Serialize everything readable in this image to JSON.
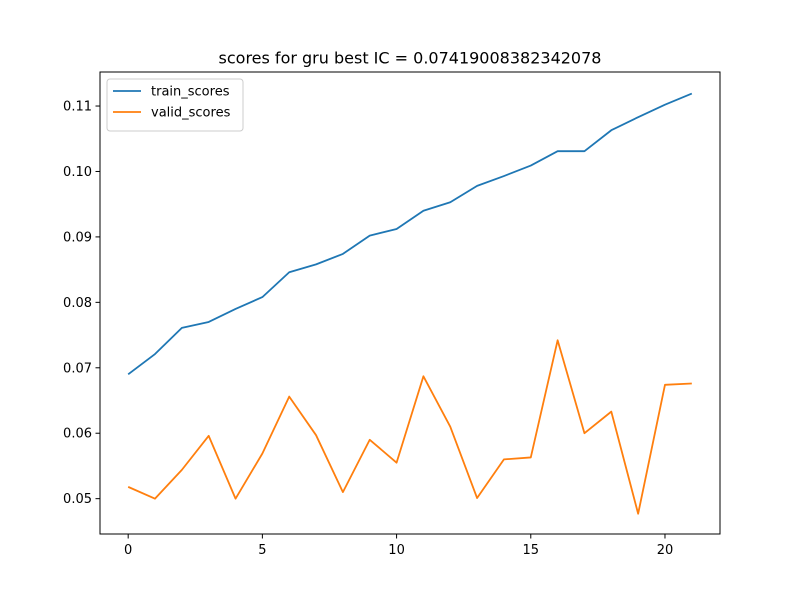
{
  "chart_data": {
    "type": "line",
    "title": "scores for gru best IC = 0.07419008382342078",
    "xlabel": "",
    "ylabel": "",
    "x": [
      0,
      1,
      2,
      3,
      4,
      5,
      6,
      7,
      8,
      9,
      10,
      11,
      12,
      13,
      14,
      15,
      16,
      17,
      18,
      19,
      20,
      21
    ],
    "xlim": [
      -1.05,
      22.05
    ],
    "ylim": [
      0.0446,
      0.1152
    ],
    "x_ticks": [
      0,
      5,
      10,
      15,
      20
    ],
    "x_tick_labels": [
      "0",
      "5",
      "10",
      "15",
      "20"
    ],
    "y_ticks": [
      0.05,
      0.06,
      0.07,
      0.08,
      0.09,
      0.1,
      0.11
    ],
    "y_tick_labels": [
      "0.05",
      "0.06",
      "0.07",
      "0.08",
      "0.09",
      "0.10",
      "0.11"
    ],
    "grid": false,
    "legend_position": "upper-left",
    "series": [
      {
        "name": "train_scores",
        "color": "#1f77b4",
        "values": [
          0.069,
          0.0721,
          0.0761,
          0.077,
          0.079,
          0.0808,
          0.0846,
          0.0858,
          0.0874,
          0.0902,
          0.0912,
          0.094,
          0.0953,
          0.0978,
          0.0993,
          0.1009,
          0.1031,
          0.1031,
          0.1063,
          0.1083,
          0.1102,
          0.1119
        ]
      },
      {
        "name": "valid_scores",
        "color": "#ff7f0e",
        "values": [
          0.0518,
          0.05,
          0.0544,
          0.0596,
          0.05,
          0.0569,
          0.0656,
          0.0597,
          0.051,
          0.059,
          0.0555,
          0.0687,
          0.061,
          0.0501,
          0.056,
          0.0563,
          0.0742,
          0.06,
          0.0633,
          0.0477,
          0.0674,
          0.0676
        ]
      }
    ]
  }
}
